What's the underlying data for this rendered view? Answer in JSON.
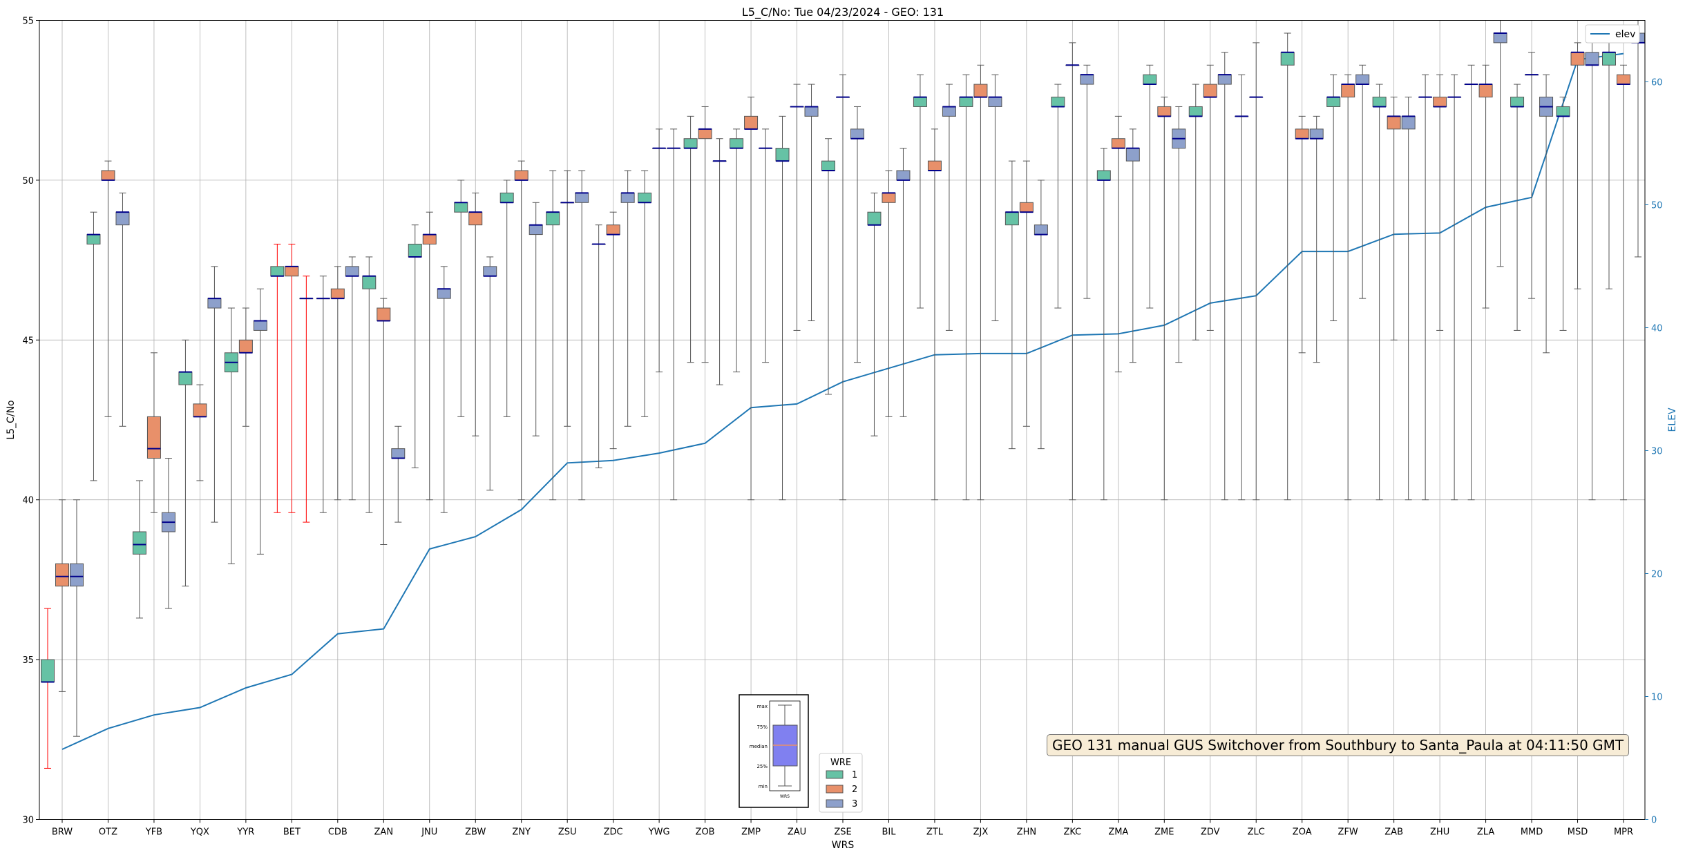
{
  "chart_data": {
    "type": "box",
    "title": "L5_C/No: Tue 04/23/2024 - GEO: 131",
    "xlabel": "WRS",
    "ylabel": "L5_C/No",
    "ylabel_right": "ELEV",
    "ylim": [
      30,
      55
    ],
    "ylim_right": [
      0,
      65
    ],
    "yticks": [
      30,
      35,
      40,
      45,
      50,
      55
    ],
    "yticks_right": [
      0,
      10,
      20,
      30,
      40,
      50,
      60
    ],
    "grid": true,
    "categories": [
      "BRW",
      "OTZ",
      "YFB",
      "YQX",
      "YYR",
      "BET",
      "CDB",
      "ZAN",
      "JNU",
      "ZBW",
      "ZNY",
      "ZSU",
      "ZDC",
      "YWG",
      "ZOB",
      "ZMP",
      "ZAU",
      "ZSE",
      "BIL",
      "ZTL",
      "ZJX",
      "ZHN",
      "ZKC",
      "ZMA",
      "ZME",
      "ZDV",
      "ZLC",
      "ZOA",
      "ZFW",
      "ZAB",
      "ZHU",
      "ZLA",
      "MMD",
      "MSD",
      "MPR"
    ],
    "wre_colors": {
      "1": "#66c2a5",
      "2": "#e8906a",
      "3": "#8da0cb"
    },
    "boxes": [
      {
        "station": "BRW",
        "wre": 1,
        "min": 31.6,
        "q1": 34.3,
        "median": 34.3,
        "q3": 35.0,
        "max": 36.6,
        "whisker_color": "#ff0000"
      },
      {
        "station": "BRW",
        "wre": 2,
        "min": 34.0,
        "q1": 37.3,
        "median": 37.6,
        "q3": 38.0,
        "max": 40.0
      },
      {
        "station": "BRW",
        "wre": 3,
        "min": 32.6,
        "q1": 37.3,
        "median": 37.6,
        "q3": 38.0,
        "max": 40.0
      },
      {
        "station": "OTZ",
        "wre": 1,
        "min": 40.6,
        "q1": 48.0,
        "median": 48.3,
        "q3": 48.3,
        "max": 49.0
      },
      {
        "station": "OTZ",
        "wre": 2,
        "min": 42.6,
        "q1": 50.0,
        "median": 50.0,
        "q3": 50.3,
        "max": 50.6
      },
      {
        "station": "OTZ",
        "wre": 3,
        "min": 42.3,
        "q1": 48.6,
        "median": 49.0,
        "q3": 49.0,
        "max": 49.6
      },
      {
        "station": "YFB",
        "wre": 1,
        "min": 36.3,
        "q1": 38.3,
        "median": 38.6,
        "q3": 39.0,
        "max": 40.6
      },
      {
        "station": "YFB",
        "wre": 2,
        "min": 39.6,
        "q1": 41.3,
        "median": 41.6,
        "q3": 42.6,
        "max": 44.6
      },
      {
        "station": "YFB",
        "wre": 3,
        "min": 36.6,
        "q1": 39.0,
        "median": 39.3,
        "q3": 39.6,
        "max": 41.3
      },
      {
        "station": "YQX",
        "wre": 1,
        "min": 37.3,
        "q1": 43.6,
        "median": 44.0,
        "q3": 44.0,
        "max": 45.0
      },
      {
        "station": "YQX",
        "wre": 2,
        "min": 40.6,
        "q1": 42.6,
        "median": 42.6,
        "q3": 43.0,
        "max": 43.6
      },
      {
        "station": "YQX",
        "wre": 3,
        "min": 39.3,
        "q1": 46.0,
        "median": 46.3,
        "q3": 46.3,
        "max": 47.3
      },
      {
        "station": "YYR",
        "wre": 1,
        "min": 38.0,
        "q1": 44.0,
        "median": 44.3,
        "q3": 44.6,
        "max": 46.0
      },
      {
        "station": "YYR",
        "wre": 2,
        "min": 42.3,
        "q1": 44.6,
        "median": 44.6,
        "q3": 45.0,
        "max": 46.0
      },
      {
        "station": "YYR",
        "wre": 3,
        "min": 38.3,
        "q1": 45.3,
        "median": 45.6,
        "q3": 45.6,
        "max": 46.6
      },
      {
        "station": "BET",
        "wre": 1,
        "min": 39.6,
        "q1": 47.0,
        "median": 47.0,
        "q3": 47.3,
        "max": 48.0,
        "whisker_color": "#ff0000"
      },
      {
        "station": "BET",
        "wre": 2,
        "min": 39.6,
        "q1": 47.0,
        "median": 47.3,
        "q3": 47.3,
        "max": 48.0,
        "whisker_color": "#ff0000"
      },
      {
        "station": "BET",
        "wre": 3,
        "min": 39.3,
        "q1": 46.3,
        "median": 46.3,
        "q3": 46.3,
        "max": 47.0,
        "whisker_color": "#ff0000"
      },
      {
        "station": "CDB",
        "wre": 1,
        "min": 39.6,
        "q1": 46.3,
        "median": 46.3,
        "q3": 46.3,
        "max": 47.0
      },
      {
        "station": "CDB",
        "wre": 2,
        "min": 40.0,
        "q1": 46.3,
        "median": 46.3,
        "q3": 46.6,
        "max": 47.3
      },
      {
        "station": "CDB",
        "wre": 3,
        "min": 40.0,
        "q1": 47.0,
        "median": 47.0,
        "q3": 47.3,
        "max": 47.6
      },
      {
        "station": "ZAN",
        "wre": 1,
        "min": 39.6,
        "q1": 46.6,
        "median": 47.0,
        "q3": 47.0,
        "max": 47.6
      },
      {
        "station": "ZAN",
        "wre": 2,
        "min": 38.6,
        "q1": 45.6,
        "median": 45.6,
        "q3": 46.0,
        "max": 46.3
      },
      {
        "station": "ZAN",
        "wre": 3,
        "min": 39.3,
        "q1": 41.3,
        "median": 41.3,
        "q3": 41.6,
        "max": 42.3
      },
      {
        "station": "JNU",
        "wre": 1,
        "min": 41.0,
        "q1": 47.6,
        "median": 47.6,
        "q3": 48.0,
        "max": 48.6
      },
      {
        "station": "JNU",
        "wre": 2,
        "min": 40.0,
        "q1": 48.0,
        "median": 48.3,
        "q3": 48.3,
        "max": 49.0
      },
      {
        "station": "JNU",
        "wre": 3,
        "min": 39.6,
        "q1": 46.3,
        "median": 46.6,
        "q3": 46.6,
        "max": 47.3
      },
      {
        "station": "ZBW",
        "wre": 1,
        "min": 42.6,
        "q1": 49.0,
        "median": 49.3,
        "q3": 49.3,
        "max": 50.0
      },
      {
        "station": "ZBW",
        "wre": 2,
        "min": 42.0,
        "q1": 48.6,
        "median": 49.0,
        "q3": 49.0,
        "max": 49.6
      },
      {
        "station": "ZBW",
        "wre": 3,
        "min": 40.3,
        "q1": 47.0,
        "median": 47.0,
        "q3": 47.3,
        "max": 47.6
      },
      {
        "station": "ZNY",
        "wre": 1,
        "min": 42.6,
        "q1": 49.3,
        "median": 49.3,
        "q3": 49.6,
        "max": 50.0
      },
      {
        "station": "ZNY",
        "wre": 2,
        "min": 40.0,
        "q1": 50.0,
        "median": 50.0,
        "q3": 50.3,
        "max": 50.6
      },
      {
        "station": "ZNY",
        "wre": 3,
        "min": 42.0,
        "q1": 48.3,
        "median": 48.6,
        "q3": 48.6,
        "max": 49.3
      },
      {
        "station": "ZSU",
        "wre": 1,
        "min": 40.0,
        "q1": 48.6,
        "median": 49.0,
        "q3": 49.0,
        "max": 50.3
      },
      {
        "station": "ZSU",
        "wre": 2,
        "min": 42.3,
        "q1": 49.3,
        "median": 49.3,
        "q3": 49.3,
        "max": 50.3
      },
      {
        "station": "ZSU",
        "wre": 3,
        "min": 40.0,
        "q1": 49.3,
        "median": 49.6,
        "q3": 49.6,
        "max": 50.3
      },
      {
        "station": "ZDC",
        "wre": 1,
        "min": 41.0,
        "q1": 48.0,
        "median": 48.0,
        "q3": 48.0,
        "max": 48.6
      },
      {
        "station": "ZDC",
        "wre": 2,
        "min": 41.6,
        "q1": 48.3,
        "median": 48.3,
        "q3": 48.6,
        "max": 49.0
      },
      {
        "station": "ZDC",
        "wre": 3,
        "min": 42.3,
        "q1": 49.3,
        "median": 49.6,
        "q3": 49.6,
        "max": 50.3
      },
      {
        "station": "YWG",
        "wre": 1,
        "min": 42.6,
        "q1": 49.3,
        "median": 49.3,
        "q3": 49.6,
        "max": 50.3
      },
      {
        "station": "YWG",
        "wre": 2,
        "min": 44.0,
        "q1": 51.0,
        "median": 51.0,
        "q3": 51.0,
        "max": 51.6
      },
      {
        "station": "YWG",
        "wre": 3,
        "min": 40.0,
        "q1": 51.0,
        "median": 51.0,
        "q3": 51.0,
        "max": 51.6
      },
      {
        "station": "ZOB",
        "wre": 1,
        "min": 44.3,
        "q1": 51.0,
        "median": 51.0,
        "q3": 51.3,
        "max": 52.0
      },
      {
        "station": "ZOB",
        "wre": 2,
        "min": 44.3,
        "q1": 51.3,
        "median": 51.6,
        "q3": 51.6,
        "max": 52.3
      },
      {
        "station": "ZOB",
        "wre": 3,
        "min": 43.6,
        "q1": 50.6,
        "median": 50.6,
        "q3": 50.6,
        "max": 51.3
      },
      {
        "station": "ZMP",
        "wre": 1,
        "min": 44.0,
        "q1": 51.0,
        "median": 51.0,
        "q3": 51.3,
        "max": 51.6
      },
      {
        "station": "ZMP",
        "wre": 2,
        "min": 40.0,
        "q1": 51.6,
        "median": 51.6,
        "q3": 52.0,
        "max": 52.6
      },
      {
        "station": "ZMP",
        "wre": 3,
        "min": 44.3,
        "q1": 51.0,
        "median": 51.0,
        "q3": 51.0,
        "max": 51.6
      },
      {
        "station": "ZAU",
        "wre": 1,
        "min": 40.0,
        "q1": 50.6,
        "median": 50.6,
        "q3": 51.0,
        "max": 52.0
      },
      {
        "station": "ZAU",
        "wre": 2,
        "min": 45.3,
        "q1": 52.3,
        "median": 52.3,
        "q3": 52.3,
        "max": 53.0
      },
      {
        "station": "ZAU",
        "wre": 3,
        "min": 45.6,
        "q1": 52.0,
        "median": 52.3,
        "q3": 52.3,
        "max": 53.0
      },
      {
        "station": "ZSE",
        "wre": 1,
        "min": 43.3,
        "q1": 50.3,
        "median": 50.3,
        "q3": 50.6,
        "max": 51.3
      },
      {
        "station": "ZSE",
        "wre": 2,
        "min": 40.0,
        "q1": 52.6,
        "median": 52.6,
        "q3": 52.6,
        "max": 53.3
      },
      {
        "station": "ZSE",
        "wre": 3,
        "min": 44.3,
        "q1": 51.3,
        "median": 51.3,
        "q3": 51.6,
        "max": 52.3
      },
      {
        "station": "BIL",
        "wre": 1,
        "min": 42.0,
        "q1": 48.6,
        "median": 48.6,
        "q3": 49.0,
        "max": 49.6
      },
      {
        "station": "BIL",
        "wre": 2,
        "min": 42.6,
        "q1": 49.3,
        "median": 49.6,
        "q3": 49.6,
        "max": 50.3
      },
      {
        "station": "BIL",
        "wre": 3,
        "min": 42.6,
        "q1": 50.0,
        "median": 50.0,
        "q3": 50.3,
        "max": 51.0
      },
      {
        "station": "ZTL",
        "wre": 1,
        "min": 46.0,
        "q1": 52.3,
        "median": 52.6,
        "q3": 52.6,
        "max": 53.3
      },
      {
        "station": "ZTL",
        "wre": 2,
        "min": 40.0,
        "q1": 50.3,
        "median": 50.3,
        "q3": 50.6,
        "max": 51.6
      },
      {
        "station": "ZTL",
        "wre": 3,
        "min": 45.3,
        "q1": 52.0,
        "median": 52.3,
        "q3": 52.3,
        "max": 53.0
      },
      {
        "station": "ZJX",
        "wre": 1,
        "min": 40.0,
        "q1": 52.3,
        "median": 52.6,
        "q3": 52.6,
        "max": 53.3
      },
      {
        "station": "ZJX",
        "wre": 2,
        "min": 40.0,
        "q1": 52.6,
        "median": 52.6,
        "q3": 53.0,
        "max": 53.6
      },
      {
        "station": "ZJX",
        "wre": 3,
        "min": 45.6,
        "q1": 52.3,
        "median": 52.6,
        "q3": 52.6,
        "max": 53.3
      },
      {
        "station": "ZHN",
        "wre": 1,
        "min": 41.6,
        "q1": 48.6,
        "median": 49.0,
        "q3": 49.0,
        "max": 50.6
      },
      {
        "station": "ZHN",
        "wre": 2,
        "min": 42.3,
        "q1": 49.0,
        "median": 49.0,
        "q3": 49.3,
        "max": 50.6
      },
      {
        "station": "ZHN",
        "wre": 3,
        "min": 41.6,
        "q1": 48.3,
        "median": 48.3,
        "q3": 48.6,
        "max": 50.0
      },
      {
        "station": "ZKC",
        "wre": 1,
        "min": 46.0,
        "q1": 52.3,
        "median": 52.3,
        "q3": 52.6,
        "max": 53.0
      },
      {
        "station": "ZKC",
        "wre": 2,
        "min": 40.0,
        "q1": 53.6,
        "median": 53.6,
        "q3": 53.6,
        "max": 54.3
      },
      {
        "station": "ZKC",
        "wre": 3,
        "min": 46.3,
        "q1": 53.0,
        "median": 53.3,
        "q3": 53.3,
        "max": 53.6
      },
      {
        "station": "ZMA",
        "wre": 1,
        "min": 40.0,
        "q1": 50.0,
        "median": 50.0,
        "q3": 50.3,
        "max": 51.0
      },
      {
        "station": "ZMA",
        "wre": 2,
        "min": 44.0,
        "q1": 51.0,
        "median": 51.0,
        "q3": 51.3,
        "max": 52.0
      },
      {
        "station": "ZMA",
        "wre": 3,
        "min": 44.3,
        "q1": 50.6,
        "median": 51.0,
        "q3": 51.0,
        "max": 51.6
      },
      {
        "station": "ZME",
        "wre": 1,
        "min": 46.0,
        "q1": 53.0,
        "median": 53.0,
        "q3": 53.3,
        "max": 53.6
      },
      {
        "station": "ZME",
        "wre": 2,
        "min": 40.0,
        "q1": 52.0,
        "median": 52.0,
        "q3": 52.3,
        "max": 52.6
      },
      {
        "station": "ZME",
        "wre": 3,
        "min": 44.3,
        "q1": 51.0,
        "median": 51.3,
        "q3": 51.6,
        "max": 52.3
      },
      {
        "station": "ZDV",
        "wre": 1,
        "min": 45.0,
        "q1": 52.0,
        "median": 52.0,
        "q3": 52.3,
        "max": 53.0
      },
      {
        "station": "ZDV",
        "wre": 2,
        "min": 45.3,
        "q1": 52.6,
        "median": 52.6,
        "q3": 53.0,
        "max": 53.6
      },
      {
        "station": "ZDV",
        "wre": 3,
        "min": 40.0,
        "q1": 53.0,
        "median": 53.3,
        "q3": 53.3,
        "max": 54.0
      },
      {
        "station": "ZLC",
        "wre": 1,
        "min": 40.0,
        "q1": 52.0,
        "median": 52.0,
        "q3": 52.0,
        "max": 53.3
      },
      {
        "station": "ZLC",
        "wre": 2,
        "min": 40.0,
        "q1": 52.6,
        "median": 52.6,
        "q3": 52.6,
        "max": 54.3
      },
      {
        "station": "ZOA",
        "wre": 1,
        "min": 40.0,
        "q1": 53.6,
        "median": 54.0,
        "q3": 54.0,
        "max": 54.6
      },
      {
        "station": "ZOA",
        "wre": 2,
        "min": 44.6,
        "q1": 51.3,
        "median": 51.3,
        "q3": 51.6,
        "max": 52.0
      },
      {
        "station": "ZOA",
        "wre": 3,
        "min": 44.3,
        "q1": 51.3,
        "median": 51.3,
        "q3": 51.6,
        "max": 52.0
      },
      {
        "station": "ZFW",
        "wre": 1,
        "min": 45.6,
        "q1": 52.3,
        "median": 52.6,
        "q3": 52.6,
        "max": 53.3
      },
      {
        "station": "ZFW",
        "wre": 2,
        "min": 40.0,
        "q1": 52.6,
        "median": 53.0,
        "q3": 53.0,
        "max": 53.3
      },
      {
        "station": "ZFW",
        "wre": 3,
        "min": 46.3,
        "q1": 53.0,
        "median": 53.0,
        "q3": 53.3,
        "max": 53.6
      },
      {
        "station": "ZAB",
        "wre": 1,
        "min": 40.0,
        "q1": 52.3,
        "median": 52.3,
        "q3": 52.6,
        "max": 53.0
      },
      {
        "station": "ZAB",
        "wre": 2,
        "min": 45.0,
        "q1": 51.6,
        "median": 52.0,
        "q3": 52.0,
        "max": 52.6
      },
      {
        "station": "ZAB",
        "wre": 3,
        "min": 40.0,
        "q1": 51.6,
        "median": 52.0,
        "q3": 52.0,
        "max": 52.6
      },
      {
        "station": "ZHU",
        "wre": 1,
        "min": 40.0,
        "q1": 52.6,
        "median": 52.6,
        "q3": 52.6,
        "max": 53.3
      },
      {
        "station": "ZHU",
        "wre": 2,
        "min": 45.3,
        "q1": 52.3,
        "median": 52.3,
        "q3": 52.6,
        "max": 53.3
      },
      {
        "station": "ZHU",
        "wre": 3,
        "min": 40.0,
        "q1": 52.6,
        "median": 52.6,
        "q3": 52.6,
        "max": 53.3
      },
      {
        "station": "ZLA",
        "wre": 1,
        "min": 40.0,
        "q1": 53.0,
        "median": 53.0,
        "q3": 53.0,
        "max": 53.6
      },
      {
        "station": "ZLA",
        "wre": 2,
        "min": 46.0,
        "q1": 52.6,
        "median": 53.0,
        "q3": 53.0,
        "max": 53.6
      },
      {
        "station": "ZLA",
        "wre": 3,
        "min": 47.3,
        "q1": 54.3,
        "median": 54.6,
        "q3": 54.6,
        "max": 55.0
      },
      {
        "station": "MMD",
        "wre": 1,
        "min": 45.3,
        "q1": 52.3,
        "median": 52.3,
        "q3": 52.6,
        "max": 53.0
      },
      {
        "station": "MMD",
        "wre": 2,
        "min": 46.3,
        "q1": 53.3,
        "median": 53.3,
        "q3": 53.3,
        "max": 54.0
      },
      {
        "station": "MMD",
        "wre": 3,
        "min": 44.6,
        "q1": 52.0,
        "median": 52.3,
        "q3": 52.6,
        "max": 53.3
      },
      {
        "station": "MSD",
        "wre": 1,
        "min": 45.3,
        "q1": 52.0,
        "median": 52.0,
        "q3": 52.3,
        "max": 52.6
      },
      {
        "station": "MSD",
        "wre": 2,
        "min": 46.6,
        "q1": 53.6,
        "median": 54.0,
        "q3": 54.0,
        "max": 54.3
      },
      {
        "station": "MSD",
        "wre": 3,
        "min": 40.0,
        "q1": 53.6,
        "median": 53.6,
        "q3": 54.0,
        "max": 54.3
      },
      {
        "station": "MPR",
        "wre": 1,
        "min": 46.6,
        "q1": 53.6,
        "median": 54.0,
        "q3": 54.0,
        "max": 54.3
      },
      {
        "station": "MPR",
        "wre": 2,
        "min": 40.0,
        "q1": 53.0,
        "median": 53.0,
        "q3": 53.3,
        "max": 53.6
      },
      {
        "station": "MPR",
        "wre": 3,
        "min": 47.6,
        "q1": 54.3,
        "median": 54.3,
        "q3": 54.6,
        "max": 55.0
      }
    ],
    "elev_series": {
      "name": "elev",
      "axis": "right",
      "color": "#1f77b4",
      "values": [
        5.7,
        7.4,
        8.5,
        9.1,
        10.7,
        11.8,
        15.1,
        15.5,
        22.0,
        23.0,
        25.2,
        29.0,
        29.2,
        29.8,
        30.6,
        33.5,
        33.8,
        35.6,
        36.7,
        37.8,
        37.9,
        37.9,
        39.4,
        39.5,
        40.2,
        42.0,
        42.6,
        46.2,
        46.2,
        47.6,
        47.7,
        49.8,
        50.6,
        61.8,
        62.3
      ]
    },
    "legend": {
      "title": "WRE",
      "entries": [
        "1",
        "2",
        "3"
      ],
      "location": "bottom-center"
    },
    "line_legend": {
      "entries": [
        "elev"
      ],
      "location": "top-right"
    },
    "inset_legend": {
      "labels": [
        "max",
        "75%",
        "median",
        "25%",
        "min"
      ],
      "xlabel": "WRS",
      "example": {
        "min": 0,
        "q1": 25,
        "median": 50,
        "q3": 75,
        "max": 100
      }
    },
    "annotation": "GEO 131 manual GUS Switchover from Southbury to Santa_Paula at 04:11:50 GMT"
  }
}
